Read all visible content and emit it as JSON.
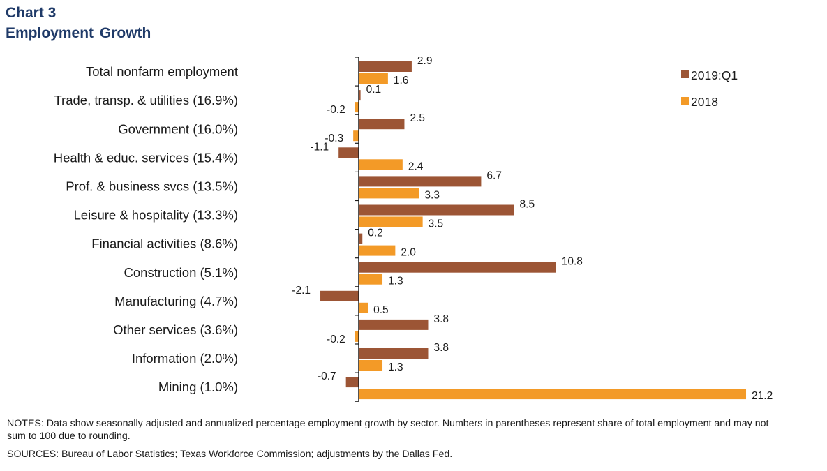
{
  "header": {
    "label": "Chart 3",
    "title": "Employment Growth"
  },
  "chart_data": {
    "type": "bar",
    "orientation": "horizontal",
    "categories": [
      "Total nonfarm employment",
      "Trade, transp. & utilities (16.9%)",
      "Government (16.0%)",
      "Health & educ. services (15.4%)",
      "Prof. & business svcs (13.5%)",
      "Leisure & hospitality (13.3%)",
      "Financial activities (8.6%)",
      "Construction (5.1%)",
      "Manufacturing (4.7%)",
      "Other services (3.6%)",
      "Information (2.0%)",
      "Mining (1.0%)"
    ],
    "series": [
      {
        "name": "2019:Q1",
        "color": "#9c5535",
        "values": [
          2.9,
          0.1,
          2.5,
          -1.1,
          6.7,
          8.5,
          0.2,
          10.8,
          -2.1,
          3.8,
          3.8,
          -0.7
        ]
      },
      {
        "name": "2018",
        "color": "#f39a27",
        "values": [
          1.6,
          -0.2,
          -0.3,
          2.4,
          3.3,
          3.5,
          2.0,
          1.3,
          0.5,
          -0.2,
          1.3,
          21.2
        ]
      }
    ],
    "legend_position": "top-right",
    "grid": false
  },
  "notes": "NOTES: Data show seasonally adjusted and annualized percentage employment growth by sector. Numbers in parentheses represent share of total employment and may not sum to 100 due to rounding.",
  "sources": "SOURCES: Bureau of Labor Statistics; Texas Workforce Commission; adjustments by the Dallas Fed."
}
